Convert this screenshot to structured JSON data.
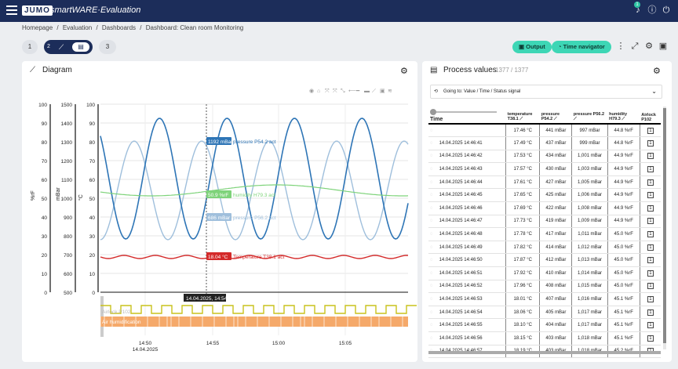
{
  "app": {
    "logo": "JUMO",
    "name": "smartWARE·Evaluation"
  },
  "breadcrumb": [
    "Homepage",
    "/",
    "Evaluation",
    "/",
    "Dashboards",
    "/",
    "Dashboard: Clean room Monitoring"
  ],
  "pages": [
    "1",
    "2",
    "3"
  ],
  "toolbar": {
    "output_label": "Output",
    "time_navigator_label": "Time navigator",
    "notifications_count": "1"
  },
  "diagram": {
    "title": "Diagram",
    "axes": [
      {
        "unit": "%rF",
        "ticks": [
          "100",
          "90",
          "80",
          "70",
          "60",
          "50",
          "40",
          "30",
          "20",
          "10",
          "0"
        ]
      },
      {
        "unit": "mBar",
        "ticks": [
          "1500",
          "1400",
          "1300",
          "1200",
          "1100",
          "1000",
          "900",
          "800",
          "700",
          "600",
          "500"
        ]
      },
      {
        "unit": "°C",
        "ticks": [
          "100",
          "90",
          "80",
          "70",
          "60",
          "50",
          "40",
          "30",
          "20",
          "10",
          "0"
        ]
      }
    ],
    "xticks": [
      "14:50\n14.04.2025",
      "14:55",
      "15:00",
      "15:05"
    ],
    "cursor_time": "14.04.2025, 14:54",
    "series_labels": [
      {
        "value": "1192 mBar",
        "name": "pressure P54.2 act",
        "color": "#2e75b6"
      },
      {
        "value": "50.9 %rF",
        "name": "humidity H79.3 act",
        "color": "#7ed37a"
      },
      {
        "value": "686 mBar",
        "name": "pressure P56.2 act",
        "color": "#9fbfdc"
      },
      {
        "value": "18.04 °C",
        "name": "Temperature T38.1 act",
        "color": "#d42a2a"
      }
    ],
    "digital_labels": [
      "Airlock P102",
      "Air humidification"
    ],
    "colors": {
      "airlock": "#c9c21c",
      "humidification": "#f5a96a"
    }
  },
  "process": {
    "title": "Process values",
    "count": "1377 / 1377",
    "goto": "Going to: Value / Time / Status signal",
    "time_header": "Time",
    "columns": [
      "temperature T38.1",
      "pressure P54.2",
      "pressure P56.2",
      "humidity H79.3",
      "Airlock P102"
    ],
    "rows": [
      {
        "time": "",
        "t": "17.46",
        "p1": "441",
        "p2": "997",
        "h": "44.8",
        "a": "1"
      },
      {
        "time": "14.04.2025 14:46:41",
        "t": "17.49",
        "p1": "437",
        "p2": "999",
        "h": "44.8",
        "a": "1"
      },
      {
        "time": "14.04.2025 14:46:42",
        "t": "17.53",
        "p1": "434",
        "p2": "1,001",
        "h": "44.9",
        "a": "1"
      },
      {
        "time": "14.04.2025 14:46:43",
        "t": "17.57",
        "p1": "430",
        "p2": "1,003",
        "h": "44.9",
        "a": "1"
      },
      {
        "time": "14.04.2025 14:46:44",
        "t": "17.61",
        "p1": "427",
        "p2": "1,005",
        "h": "44.9",
        "a": "1"
      },
      {
        "time": "14.04.2025 14:46:45",
        "t": "17.65",
        "p1": "425",
        "p2": "1,006",
        "h": "44.9",
        "a": "1"
      },
      {
        "time": "14.04.2025 14:46:46",
        "t": "17.69",
        "p1": "422",
        "p2": "1,008",
        "h": "44.9",
        "a": "1"
      },
      {
        "time": "14.04.2025 14:46:47",
        "t": "17.73",
        "p1": "419",
        "p2": "1,009",
        "h": "44.9",
        "a": "1"
      },
      {
        "time": "14.04.2025 14:46:48",
        "t": "17.78",
        "p1": "417",
        "p2": "1,011",
        "h": "45.0",
        "a": "1"
      },
      {
        "time": "14.04.2025 14:46:49",
        "t": "17.82",
        "p1": "414",
        "p2": "1,012",
        "h": "45.0",
        "a": "1"
      },
      {
        "time": "14.04.2025 14:46:50",
        "t": "17.87",
        "p1": "412",
        "p2": "1,013",
        "h": "45.0",
        "a": "1"
      },
      {
        "time": "14.04.2025 14:46:51",
        "t": "17.92",
        "p1": "410",
        "p2": "1,014",
        "h": "45.0",
        "a": "1"
      },
      {
        "time": "14.04.2025 14:46:52",
        "t": "17.96",
        "p1": "408",
        "p2": "1,015",
        "h": "45.0",
        "a": "1"
      },
      {
        "time": "14.04.2025 14:46:53",
        "t": "18.01",
        "p1": "407",
        "p2": "1,016",
        "h": "45.1",
        "a": "1"
      },
      {
        "time": "14.04.2025 14:46:54",
        "t": "18.06",
        "p1": "405",
        "p2": "1,017",
        "h": "45.1",
        "a": "1"
      },
      {
        "time": "14.04.2025 14:46:55",
        "t": "18.10",
        "p1": "404",
        "p2": "1,017",
        "h": "45.1",
        "a": "1"
      },
      {
        "time": "14.04.2025 14:46:56",
        "t": "18.15",
        "p1": "403",
        "p2": "1,018",
        "h": "45.1",
        "a": "1"
      },
      {
        "time": "14.04.2025 14:46:57",
        "t": "18.19",
        "p1": "403",
        "p2": "1,018",
        "h": "45.2",
        "a": "1"
      }
    ],
    "units": {
      "t": "°C",
      "p": "mBar",
      "h": "%rF"
    }
  }
}
